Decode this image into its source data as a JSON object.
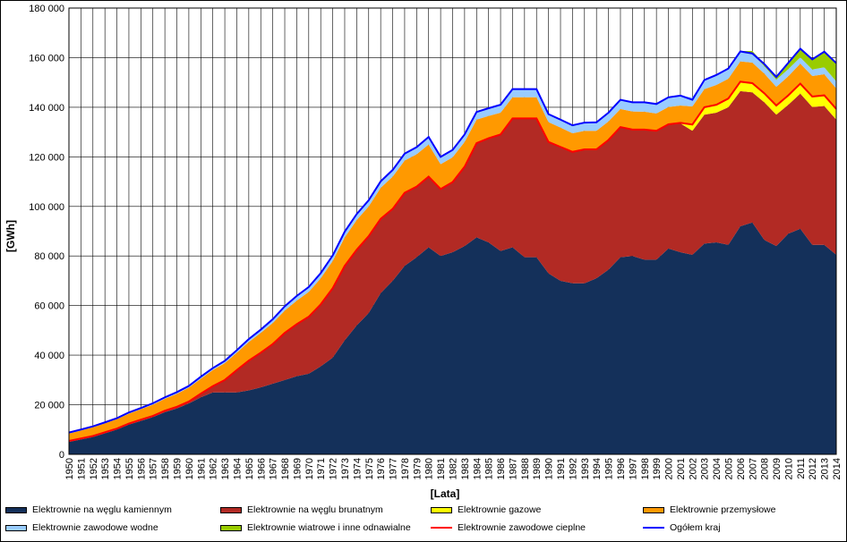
{
  "chart_data": {
    "type": "area",
    "stacked": true,
    "title": "",
    "xlabel": "[Lata]",
    "ylabel": "[GWh]",
    "ylim": [
      0,
      180000
    ],
    "yticks": [
      0,
      20000,
      40000,
      60000,
      80000,
      100000,
      120000,
      140000,
      160000,
      180000
    ],
    "ytick_labels": [
      "0",
      "20 000",
      "40 000",
      "60 000",
      "80 000",
      "100 000",
      "120 000",
      "140 000",
      "160 000",
      "180 000"
    ],
    "grid": true,
    "legend_position": "bottom",
    "x": [
      1950,
      1951,
      1952,
      1953,
      1954,
      1955,
      1956,
      1957,
      1958,
      1959,
      1960,
      1961,
      1962,
      1963,
      1964,
      1965,
      1966,
      1967,
      1968,
      1969,
      1970,
      1971,
      1972,
      1973,
      1974,
      1975,
      1976,
      1977,
      1978,
      1979,
      1980,
      1981,
      1982,
      1983,
      1984,
      1985,
      1986,
      1987,
      1988,
      1989,
      1990,
      1991,
      1992,
      1993,
      1994,
      1995,
      1996,
      1997,
      1998,
      1999,
      2000,
      2001,
      2002,
      2003,
      2004,
      2005,
      2006,
      2007,
      2008,
      2009,
      2010,
      2011,
      2012,
      2013,
      2014
    ],
    "series": [
      {
        "name": "Elektrownie na węglu kamiennym",
        "color": "#14305a",
        "values": [
          5000,
          6000,
          7000,
          8500,
          10000,
          12000,
          13500,
          15000,
          17000,
          18500,
          20500,
          23000,
          25000,
          25000,
          25000,
          25800,
          27000,
          28500,
          30000,
          31500,
          32500,
          35500,
          39000,
          46000,
          52000,
          57000,
          65000,
          70000,
          76000,
          79500,
          83500,
          80000,
          81500,
          84000,
          87500,
          85500,
          82000,
          83500,
          79500,
          79500,
          73000,
          70000,
          69000,
          69000,
          71000,
          74500,
          79500,
          80000,
          78500,
          78500,
          83000,
          81500,
          80500,
          85000,
          85500,
          84500,
          92000,
          93500,
          86500,
          84000,
          89000,
          91000,
          84500,
          84500,
          80500
        ]
      },
      {
        "name": "Elektrownie na węglu brunatnym",
        "color": "#b22a24",
        "values": [
          400,
          400,
          400,
          400,
          400,
          400,
          500,
          500,
          600,
          700,
          800,
          1500,
          2500,
          5000,
          9000,
          12000,
          14000,
          16000,
          19000,
          21000,
          23000,
          25000,
          28000,
          30000,
          30500,
          31000,
          30000,
          29000,
          29500,
          28500,
          28500,
          27000,
          28300,
          32000,
          38000,
          42000,
          47000,
          52000,
          56000,
          56000,
          53000,
          54000,
          53000,
          54000,
          52000,
          52300,
          52500,
          51000,
          52500,
          52000,
          50000,
          52000,
          50000,
          52000,
          52300,
          55500,
          54500,
          52500,
          55500,
          53000,
          52000,
          54500,
          55600,
          56000,
          54500
        ]
      },
      {
        "name": "Elektrownie gazowe",
        "color": "#ffff00",
        "values": [
          0,
          0,
          0,
          0,
          0,
          0,
          0,
          0,
          0,
          0,
          0,
          0,
          0,
          0,
          0,
          0,
          0,
          0,
          0,
          0,
          0,
          0,
          0,
          0,
          0,
          0,
          0,
          0,
          0,
          0,
          0,
          0,
          0,
          0,
          0,
          0,
          0,
          0,
          0,
          0,
          0,
          0,
          0,
          0,
          0,
          0,
          0,
          0,
          0,
          0,
          100,
          200,
          2500,
          3000,
          3200,
          3500,
          3800,
          3700,
          3600,
          3700,
          3800,
          4000,
          4200,
          4300,
          4300
        ]
      },
      {
        "name": "Elektrownie przemysłowe",
        "color": "#ff9900",
        "values": [
          3000,
          3200,
          3500,
          3600,
          3800,
          4000,
          4200,
          4500,
          4800,
          5200,
          5600,
          6000,
          6500,
          6800,
          7000,
          7500,
          8000,
          8500,
          9000,
          9500,
          10000,
          10500,
          11000,
          11500,
          12000,
          12000,
          12500,
          13000,
          13000,
          13000,
          13000,
          10000,
          10000,
          10000,
          9500,
          9000,
          8800,
          8500,
          8500,
          8500,
          8000,
          7800,
          7500,
          7500,
          7500,
          7500,
          7300,
          7300,
          7200,
          7000,
          7000,
          7000,
          7300,
          7300,
          8000,
          8000,
          8200,
          8300,
          8000,
          7500,
          7700,
          8100,
          8300,
          8500,
          8300
        ]
      },
      {
        "name": "Elektrownie zawodowe wodne",
        "color": "#99ccff",
        "values": [
          400,
          400,
          400,
          400,
          400,
          500,
          500,
          600,
          600,
          700,
          700,
          800,
          800,
          900,
          1000,
          1200,
          1300,
          1500,
          1700,
          1900,
          2000,
          2100,
          2200,
          2300,
          2400,
          2500,
          2600,
          2700,
          2800,
          2900,
          3000,
          3000,
          3000,
          3000,
          3100,
          3100,
          3200,
          3300,
          3300,
          3300,
          3200,
          3200,
          3200,
          3300,
          3400,
          3500,
          3700,
          3700,
          3800,
          3800,
          3800,
          3800,
          3700,
          3700,
          3800,
          3800,
          3800,
          3700,
          2900,
          2900,
          2900,
          2500,
          2600,
          2800,
          2800
        ]
      },
      {
        "name": "Elektrownie wiatrowe i inne odnawialne",
        "color": "#99cc00",
        "values": [
          0,
          0,
          0,
          0,
          0,
          0,
          0,
          0,
          0,
          0,
          0,
          0,
          0,
          0,
          0,
          0,
          0,
          0,
          0,
          0,
          0,
          0,
          0,
          0,
          0,
          0,
          0,
          0,
          0,
          0,
          0,
          0,
          0,
          0,
          0,
          0,
          0,
          0,
          0,
          0,
          0,
          0,
          0,
          0,
          0,
          0,
          0,
          0,
          0,
          0,
          0,
          0,
          0,
          0,
          0,
          300,
          400,
          1000,
          900,
          1100,
          2500,
          3500,
          4000,
          6000,
          7400
        ]
      },
      {
        "name": "Elektrownie zawodowe cieplne",
        "color": "#ff0000",
        "kind": "line",
        "values": [
          5400,
          6400,
          7400,
          8900,
          10400,
          12400,
          14000,
          15500,
          17600,
          19200,
          21300,
          24500,
          27500,
          30000,
          34000,
          37800,
          41000,
          44500,
          49000,
          52500,
          55500,
          60500,
          67000,
          76000,
          82500,
          88000,
          95000,
          99000,
          105500,
          108000,
          112000,
          107000,
          109800,
          116000,
          125500,
          127500,
          129000,
          135500,
          135500,
          135500,
          126000,
          124000,
          122000,
          123000,
          123000,
          126800,
          132000,
          131000,
          131000,
          130500,
          133100,
          133700,
          133000,
          140000,
          141000,
          143500,
          150300,
          149700,
          145600,
          140700,
          144800,
          149500,
          144300,
          144800,
          139300
        ]
      },
      {
        "name": "Ogółem kraj",
        "color": "#0000ff",
        "kind": "line",
        "values": [
          8800,
          10000,
          11300,
          12900,
          14600,
          16900,
          18700,
          20600,
          23000,
          25100,
          27600,
          31300,
          34800,
          37700,
          42000,
          46500,
          50300,
          54500,
          59700,
          63900,
          67500,
          73100,
          80200,
          89800,
          96900,
          102500,
          110100,
          114700,
          121300,
          123900,
          128000,
          120000,
          122800,
          129000,
          138100,
          139600,
          141000,
          147300,
          147300,
          147300,
          137200,
          135000,
          132700,
          133800,
          133900,
          137800,
          143000,
          142000,
          142000,
          141300,
          144000,
          144700,
          143000,
          151000,
          153000,
          155600,
          162500,
          161700,
          157400,
          152200,
          157900,
          163600,
          159300,
          162400,
          157800
        ]
      }
    ],
    "legend": [
      {
        "label": "Elektrownie na węglu kamiennym",
        "color": "#14305a",
        "kind": "area"
      },
      {
        "label": "Elektrownie na węglu brunatnym",
        "color": "#b22a24",
        "kind": "area"
      },
      {
        "label": "Elektrownie gazowe",
        "color": "#ffff00",
        "kind": "area"
      },
      {
        "label": "Elektrownie przemysłowe",
        "color": "#ff9900",
        "kind": "area"
      },
      {
        "label": "Elektrownie zawodowe wodne",
        "color": "#99ccff",
        "kind": "area"
      },
      {
        "label": "Elektrownie wiatrowe i inne odnawialne",
        "color": "#99cc00",
        "kind": "area"
      },
      {
        "label": "Elektrownie zawodowe cieplne",
        "color": "#ff0000",
        "kind": "line"
      },
      {
        "label": "Ogółem kraj",
        "color": "#0000ff",
        "kind": "line"
      }
    ]
  }
}
